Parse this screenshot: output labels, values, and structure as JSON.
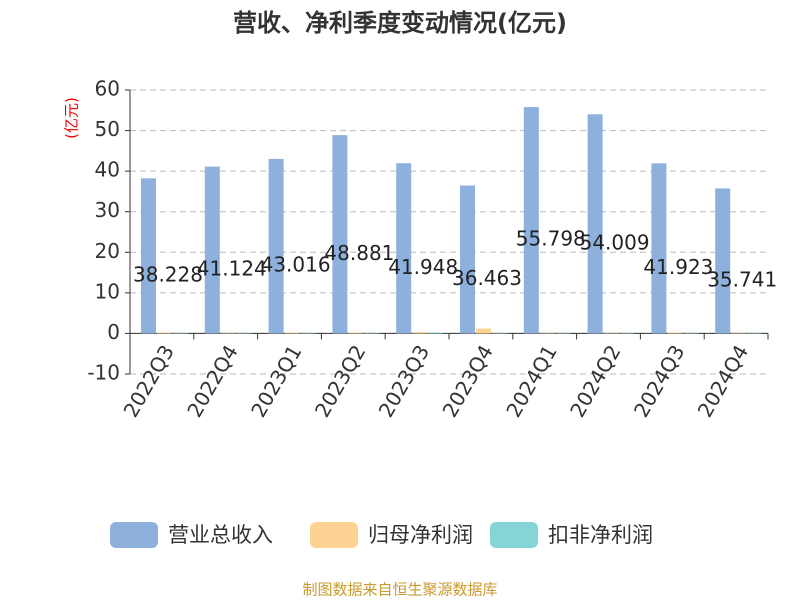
{
  "chart_data": {
    "type": "bar",
    "title": "营收、净利季度变动情况(亿元)",
    "y_label": "(亿元)",
    "categories": [
      "2022Q3",
      "2022Q4",
      "2023Q1",
      "2023Q2",
      "2023Q3",
      "2023Q4",
      "2024Q1",
      "2024Q2",
      "2024Q3",
      "2024Q4"
    ],
    "series": [
      {
        "name": "营业总收入",
        "color": "#8eb0dc",
        "values": [
          38.228,
          41.124,
          43.016,
          48.881,
          41.948,
          36.463,
          55.798,
          54.009,
          41.923,
          35.741
        ]
      },
      {
        "name": "归母净利润",
        "color": "#fdd393",
        "values": [
          0.2,
          0.1,
          0.2,
          0.2,
          0.3,
          1.2,
          0.1,
          0.1,
          0.2,
          0.1
        ]
      },
      {
        "name": "扣非净利润",
        "color": "#86d5d6",
        "values": [
          0.1,
          0.1,
          0.1,
          0.1,
          0.2,
          0.1,
          0.1,
          0.1,
          0.1,
          0.1
        ]
      }
    ],
    "ylim": [
      -10,
      60
    ],
    "yticks": [
      -10,
      0,
      10,
      20,
      30,
      40,
      50,
      60
    ],
    "grid": true,
    "source": "制图数据来自恒生聚源数据库"
  }
}
